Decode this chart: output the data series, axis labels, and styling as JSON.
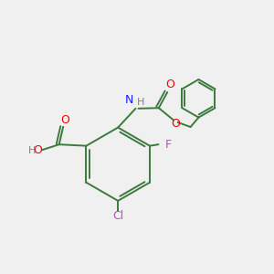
{
  "bg_color": "#f0f0f0",
  "bond_color": "#3d7a3d",
  "atom_colors": {
    "O": "#ff0000",
    "N": "#1a1aff",
    "F": "#cc44cc",
    "Cl": "#cc44cc",
    "H": "#808080",
    "C": "#3d7a3d"
  },
  "line_width": 1.4,
  "figsize": [
    3.0,
    3.0
  ],
  "dpi": 100
}
